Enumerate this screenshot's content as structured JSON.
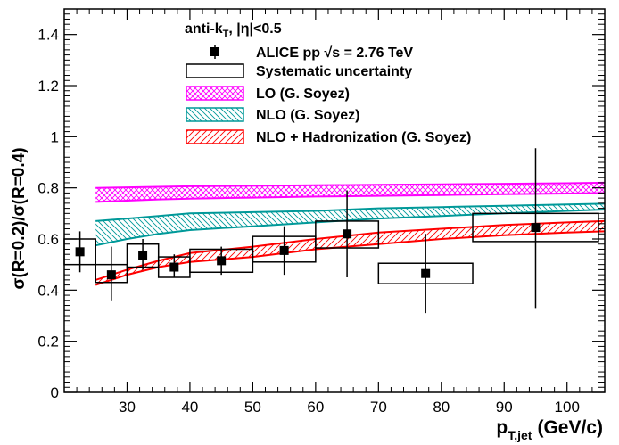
{
  "chart_data": {
    "type": "scatter",
    "title": "",
    "xlabel_main": "p",
    "xlabel_sub": "T,jet",
    "xlabel_unit": "(GeV/c)",
    "ylabel": "σ(R=0.2)/σ(R=0.4)",
    "xlim": [
      20,
      106
    ],
    "ylim": [
      0,
      1.5
    ],
    "x_ticks": [
      30,
      40,
      50,
      60,
      70,
      80,
      90,
      100
    ],
    "y_ticks": [
      0,
      0.2,
      0.4,
      0.6,
      0.8,
      1,
      1.2,
      1.4
    ],
    "x_tick_labels": [
      "30",
      "40",
      "50",
      "60",
      "70",
      "80",
      "90",
      "100"
    ],
    "y_tick_labels": [
      "0",
      "0.2",
      "0.4",
      "0.6",
      "0.8",
      "1",
      "1.2",
      "1.4"
    ],
    "legend_header": {
      "main": "anti-k",
      "sub": "T",
      "tail": ", |η|<0.5"
    },
    "legend_position": "top-center",
    "colors": {
      "data": "#000000",
      "lo": "#ff00ff",
      "nlo": "#009999",
      "nlo_had": "#ff0000"
    },
    "data_series": {
      "name": "ALICE pp √s = 2.76 TeV",
      "points": [
        {
          "x": 22.5,
          "y": 0.55,
          "x_lo": 20,
          "x_hi": 25,
          "stat_lo": 0.47,
          "stat_hi": 0.63,
          "sys_lo": 0.5,
          "sys_hi": 0.6
        },
        {
          "x": 27.5,
          "y": 0.46,
          "x_lo": 25,
          "x_hi": 30,
          "stat_lo": 0.36,
          "stat_hi": 0.57,
          "sys_lo": 0.43,
          "sys_hi": 0.5
        },
        {
          "x": 32.5,
          "y": 0.535,
          "x_lo": 30,
          "x_hi": 35,
          "stat_lo": 0.48,
          "stat_hi": 0.6,
          "sys_lo": 0.49,
          "sys_hi": 0.58
        },
        {
          "x": 37.5,
          "y": 0.49,
          "x_lo": 35,
          "x_hi": 40,
          "stat_lo": 0.45,
          "stat_hi": 0.54,
          "sys_lo": 0.45,
          "sys_hi": 0.53
        },
        {
          "x": 45,
          "y": 0.515,
          "x_lo": 40,
          "x_hi": 50,
          "stat_lo": 0.46,
          "stat_hi": 0.57,
          "sys_lo": 0.47,
          "sys_hi": 0.56
        },
        {
          "x": 55,
          "y": 0.555,
          "x_lo": 50,
          "x_hi": 60,
          "stat_lo": 0.46,
          "stat_hi": 0.65,
          "sys_lo": 0.51,
          "sys_hi": 0.61
        },
        {
          "x": 65,
          "y": 0.62,
          "x_lo": 60,
          "x_hi": 70,
          "stat_lo": 0.45,
          "stat_hi": 0.79,
          "sys_lo": 0.565,
          "sys_hi": 0.67
        },
        {
          "x": 77.5,
          "y": 0.465,
          "x_lo": 70,
          "x_hi": 85,
          "stat_lo": 0.31,
          "stat_hi": 0.62,
          "sys_lo": 0.425,
          "sys_hi": 0.505
        },
        {
          "x": 95,
          "y": 0.645,
          "x_lo": 85,
          "x_hi": 105,
          "stat_lo": 0.33,
          "stat_hi": 0.955,
          "sys_lo": 0.59,
          "sys_hi": 0.7
        }
      ]
    },
    "systematic_label": "Systematic uncertainty",
    "bands": [
      {
        "name": "LO (G. Soyez)",
        "color": "#ff00ff",
        "x": [
          25,
          30,
          35,
          40,
          50,
          60,
          70,
          80,
          90,
          100,
          106
        ],
        "low": [
          0.745,
          0.75,
          0.755,
          0.758,
          0.762,
          0.766,
          0.769,
          0.772,
          0.775,
          0.778,
          0.78
        ],
        "high": [
          0.8,
          0.802,
          0.804,
          0.806,
          0.808,
          0.81,
          0.812,
          0.814,
          0.816,
          0.818,
          0.82
        ]
      },
      {
        "name": "NLO (G. Soyez)",
        "color": "#009999",
        "x": [
          25,
          30,
          35,
          40,
          50,
          60,
          70,
          80,
          90,
          100,
          106
        ],
        "low": [
          0.575,
          0.6,
          0.62,
          0.635,
          0.65,
          0.665,
          0.68,
          0.69,
          0.7,
          0.71,
          0.715
        ],
        "high": [
          0.67,
          0.68,
          0.69,
          0.7,
          0.705,
          0.71,
          0.72,
          0.725,
          0.73,
          0.735,
          0.738
        ]
      },
      {
        "name": "NLO + Hadronization (G. Soyez)",
        "color": "#ff0000",
        "x": [
          25,
          30,
          35,
          40,
          50,
          60,
          70,
          80,
          90,
          100,
          106
        ],
        "low": [
          0.42,
          0.46,
          0.49,
          0.51,
          0.53,
          0.56,
          0.58,
          0.6,
          0.615,
          0.625,
          0.63
        ],
        "high": [
          0.44,
          0.48,
          0.515,
          0.545,
          0.57,
          0.6,
          0.625,
          0.64,
          0.655,
          0.665,
          0.67
        ]
      }
    ]
  }
}
